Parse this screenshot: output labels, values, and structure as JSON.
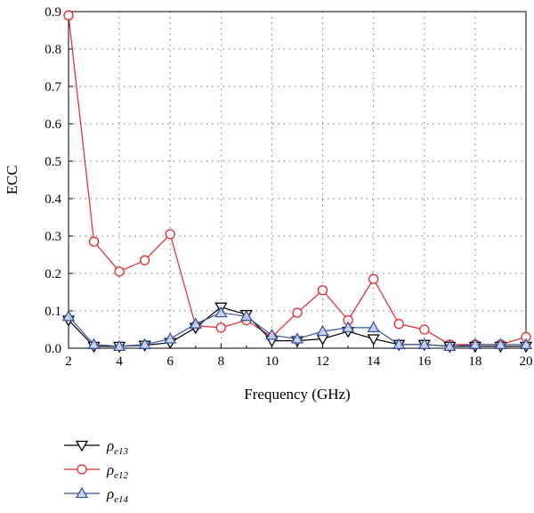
{
  "chart_data": {
    "type": "line",
    "xlabel": "Frequency (GHz)",
    "ylabel": "ECC",
    "xlim": [
      2,
      20
    ],
    "ylim": [
      0,
      0.9
    ],
    "xticks": [
      "2",
      "4",
      "6",
      "8",
      "10",
      "12",
      "14",
      "16",
      "18",
      "20"
    ],
    "yticks": [
      "0.0",
      "0.1",
      "0.2",
      "0.3",
      "0.4",
      "0.5",
      "0.6",
      "0.7",
      "0.8",
      "0.9"
    ],
    "grid": true,
    "legend_position": "bottom-left",
    "x": [
      2,
      3,
      4,
      5,
      6,
      7,
      8,
      9,
      10,
      11,
      12,
      13,
      14,
      15,
      16,
      17,
      18,
      19,
      20
    ],
    "series": [
      {
        "name": "ρe13",
        "name_main": "ρ",
        "name_sub": "e13",
        "color": "#000000",
        "marker": "triangle-down",
        "values": [
          0.075,
          0.005,
          0.005,
          0.008,
          0.015,
          0.055,
          0.11,
          0.09,
          0.02,
          0.02,
          0.025,
          0.045,
          0.025,
          0.01,
          0.01,
          0.005,
          0.005,
          0.005,
          0.005
        ]
      },
      {
        "name": "ρe12",
        "name_main": "ρ",
        "name_sub": "e12",
        "color": "#e8262a",
        "marker": "circle",
        "values": [
          0.89,
          0.285,
          0.205,
          0.235,
          0.305,
          0.06,
          0.055,
          0.075,
          0.03,
          0.095,
          0.155,
          0.075,
          0.185,
          0.065,
          0.05,
          0.01,
          0.01,
          0.01,
          0.03
        ]
      },
      {
        "name": "ρe14",
        "name_main": "ρ",
        "name_sub": "e14",
        "color": "#3a55a4",
        "marker": "triangle-up",
        "values": [
          0.085,
          0.01,
          0.005,
          0.01,
          0.025,
          0.065,
          0.095,
          0.085,
          0.035,
          0.025,
          0.045,
          0.055,
          0.055,
          0.01,
          0.01,
          0.005,
          0.01,
          0.01,
          0.01
        ]
      }
    ]
  }
}
